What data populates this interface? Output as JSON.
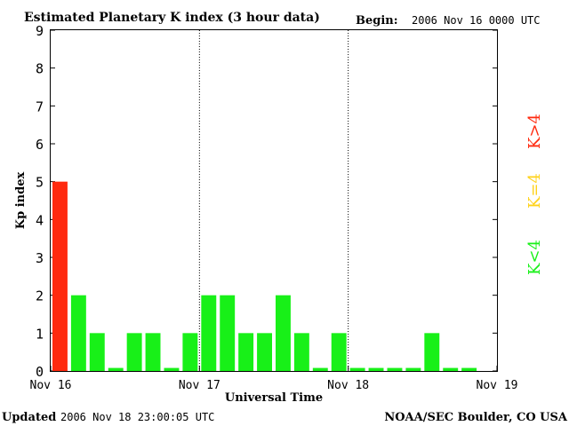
{
  "colors": {
    "high": "#ff2a0f",
    "mid": "#ffd21a",
    "low": "#18f018",
    "axis": "#000000",
    "bar_edge": "#ffffff"
  },
  "header": {
    "title": "Estimated Planetary K index (3 hour data)",
    "begin_label": "Begin:",
    "begin_value": "2006 Nov 16 0000 UTC"
  },
  "footer": {
    "updated_label": "Updated",
    "updated_value": "2006 Nov 18 23:00:05 UTC",
    "source": "NOAA/SEC Boulder, CO USA"
  },
  "legend": [
    {
      "text": "K>4",
      "color": "#ff2a0f"
    },
    {
      "text": "K=4",
      "color": "#ffd21a"
    },
    {
      "text": "K<4",
      "color": "#18f018"
    }
  ],
  "chart_data": {
    "type": "bar",
    "title": "Estimated Planetary K index (3 hour data)",
    "xlabel": "Universal Time",
    "ylabel": "Kp index",
    "ylim": [
      0,
      9
    ],
    "yticks": [
      0,
      1,
      2,
      3,
      4,
      5,
      6,
      7,
      8,
      9
    ],
    "xlim_hours": [
      0,
      72
    ],
    "bar_width_hours": 3,
    "xticks": [
      {
        "hour": 0,
        "label": "Nov 16"
      },
      {
        "hour": 24,
        "label": "Nov 17"
      },
      {
        "hour": 48,
        "label": "Nov 18"
      },
      {
        "hour": 72,
        "label": "Nov 19"
      }
    ],
    "day_dividers_hours": [
      24,
      48
    ],
    "categories": [
      "Nov 16 00",
      "Nov 16 03",
      "Nov 16 06",
      "Nov 16 09",
      "Nov 16 12",
      "Nov 16 15",
      "Nov 16 18",
      "Nov 16 21",
      "Nov 17 00",
      "Nov 17 03",
      "Nov 17 06",
      "Nov 17 09",
      "Nov 17 12",
      "Nov 17 15",
      "Nov 17 18",
      "Nov 17 21",
      "Nov 18 00",
      "Nov 18 03",
      "Nov 18 06",
      "Nov 18 09",
      "Nov 18 12",
      "Nov 18 15",
      "Nov 18 18",
      "Nov 18 21"
    ],
    "values": [
      5,
      2,
      1,
      0,
      1,
      1,
      0,
      1,
      2,
      2,
      1,
      1,
      2,
      1,
      0,
      1,
      0,
      0,
      0,
      0,
      1,
      0,
      0,
      null
    ],
    "grid": false
  }
}
